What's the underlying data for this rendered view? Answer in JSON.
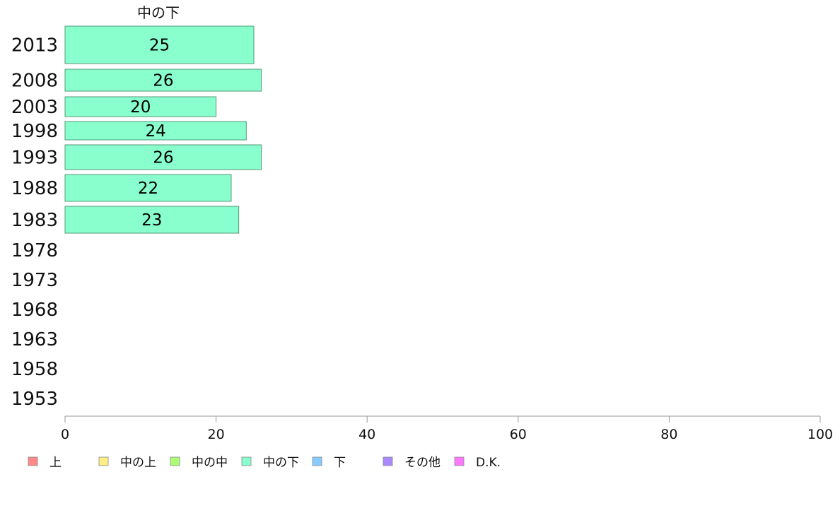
{
  "chart_data": {
    "type": "bar",
    "orientation": "horizontal",
    "title": "中の下",
    "categories": [
      "2013",
      "2008",
      "2003",
      "1998",
      "1993",
      "1988",
      "1983",
      "1978",
      "1973",
      "1968",
      "1963",
      "1958",
      "1953"
    ],
    "series": [
      {
        "name": "中の下",
        "values": [
          25,
          26,
          20,
          24,
          26,
          22,
          23,
          null,
          null,
          null,
          null,
          null,
          null
        ],
        "color": "#88ffcc"
      }
    ],
    "data_labels": [
      "25",
      "26",
      "20",
      "24",
      "26",
      "22",
      "23",
      "",
      "",
      "",
      "",
      "",
      ""
    ],
    "xlim": [
      0,
      100
    ],
    "x_ticks": [
      0,
      20,
      40,
      60,
      80,
      100
    ],
    "x_tick_labels": [
      "0",
      "20",
      "40",
      "60",
      "80",
      "100"
    ],
    "grid": false,
    "legend": {
      "placement": "bottom",
      "items": [
        {
          "label": "上",
          "color": "#ff8888"
        },
        {
          "label": "中の上",
          "color": "#ffee88"
        },
        {
          "label": "中の中",
          "color": "#aaff77"
        },
        {
          "label": "中の下",
          "color": "#88ffcc"
        },
        {
          "label": "下",
          "color": "#88ccff"
        },
        {
          "label": "その他",
          "color": "#aa88ff"
        },
        {
          "label": "D.K.",
          "color": "#ff77ff"
        }
      ]
    }
  }
}
